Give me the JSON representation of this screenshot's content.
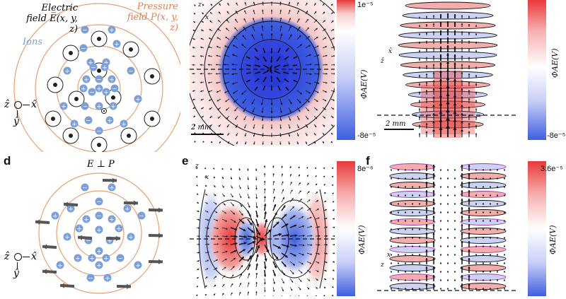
{
  "panel_labels": {
    "d": "d",
    "e": "e",
    "f": "f"
  },
  "schematic_top": {
    "electric_field_line1": "Electric",
    "electric_field_line2": "field E̅(x, y, z)",
    "pressure_line1": "Pressure",
    "pressure_line2": "field P(x, y, z)",
    "ions": "Ions",
    "axis_z": "ẑ",
    "axis_x": "x̂",
    "axis_y": "ŷ"
  },
  "schematic_bottom": {
    "title": "E ⊥ P",
    "axis_z": "ẑ",
    "axis_x": "x̂",
    "axis_y": "ŷ"
  },
  "plots": {
    "top_middle": {
      "scale_bar": "2 mm",
      "axis_z": "z",
      "axis_x": "x"
    },
    "top_right": {
      "scale_bar": "2 mm",
      "axis_x": "x̂",
      "axis_z": "ẑ"
    },
    "bottom_middle": {
      "axis_z": "z",
      "axis_x": "x"
    },
    "bottom_right": {
      "axis_x": "x",
      "axis_z": "z"
    }
  },
  "colorbars": {
    "top_middle": {
      "top": "1e⁻⁵",
      "bottom": "-8e⁻⁵",
      "label": "ΦAE(V)"
    },
    "top_right": {
      "top": "",
      "bottom": "-8e⁻⁵",
      "label": "ΦAE(V)"
    },
    "bottom_middle": {
      "top": "8e⁻⁶",
      "bottom": "",
      "label": "ΦAE(V)"
    },
    "bottom_right": {
      "top": "3.6e⁻⁵",
      "bottom": "",
      "label": "ΦAE(V)"
    }
  },
  "colors": {
    "red": "#e83a3a",
    "blue": "#3f5fe0",
    "orange": "#e8a070",
    "ion_blue": "#7d9fd8",
    "arrow_gray": "#555555"
  }
}
